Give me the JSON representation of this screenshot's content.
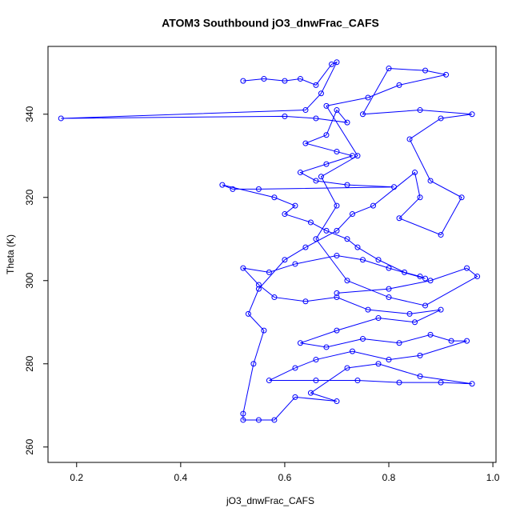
{
  "chart_data": {
    "type": "line",
    "title": "ATOM3 Southbound jO3_dnwFrac_CAFS",
    "x_label": "jO3_dnwFrac_CAFS",
    "y_label": "Theta (K)",
    "color": "#0000ff",
    "markers": true,
    "xlim": [
      0.145,
      1.006
    ],
    "ylim": [
      256.3,
      356.3
    ],
    "xticks": [
      0.2,
      0.4,
      0.6,
      {
        "value": 0.8,
        "label": "0.8"
      },
      {
        "value": 1,
        "label": "1.0"
      }
    ],
    "yticks": [
      260,
      280,
      300,
      320,
      340
    ],
    "x": [
      0.52,
      0.56,
      0.6,
      0.63,
      0.66,
      0.69,
      0.7,
      0.67,
      0.64,
      0.17,
      0.6,
      0.66,
      0.72,
      0.7,
      0.68,
      0.64,
      0.7,
      0.73,
      0.68,
      0.63,
      0.66,
      0.72,
      0.81,
      0.55,
      0.5,
      0.48,
      0.58,
      0.62,
      0.6,
      0.65,
      0.68,
      0.72,
      0.74,
      0.78,
      0.83,
      0.86,
      0.87,
      0.8,
      0.75,
      0.7,
      0.62,
      0.57,
      0.52,
      0.55,
      0.58,
      0.64,
      0.7,
      0.76,
      0.84,
      0.9,
      0.85,
      0.78,
      0.7,
      0.63,
      0.68,
      0.75,
      0.82,
      0.88,
      0.92,
      0.95,
      0.86,
      0.8,
      0.73,
      0.66,
      0.62,
      0.57,
      0.66,
      0.74,
      0.82,
      0.9,
      0.96,
      0.86,
      0.78,
      0.72,
      0.65,
      0.7,
      0.62,
      0.58,
      0.55,
      0.52,
      0.52,
      0.54,
      0.56,
      0.53,
      0.55,
      0.6,
      0.64,
      0.7,
      0.73,
      0.77,
      0.85,
      0.86,
      0.82,
      0.9,
      0.94,
      0.88,
      0.84,
      0.9,
      0.96,
      0.86,
      0.75,
      0.8,
      0.87,
      0.91,
      0.82,
      0.76,
      0.68,
      0.74,
      0.67,
      0.7,
      0.66,
      0.72,
      0.8,
      0.87,
      0.97,
      0.95,
      0.88,
      0.8,
      0.7
    ],
    "values": [
      348,
      348.5,
      348,
      348.5,
      347,
      352,
      352.5,
      345,
      341,
      339,
      339.5,
      339,
      338,
      341,
      335,
      333,
      331,
      330,
      328,
      326,
      324,
      323,
      322.5,
      322,
      322,
      323,
      320,
      318,
      316,
      314,
      312,
      310,
      308,
      305,
      302,
      301,
      300.5,
      303,
      305,
      306,
      304,
      302,
      303,
      299,
      296,
      295,
      296,
      293,
      292,
      293,
      290,
      291,
      288,
      285,
      284,
      286,
      285,
      287,
      285.5,
      285.5,
      282,
      281,
      283,
      281,
      279,
      276,
      276,
      276,
      275.5,
      275.5,
      275.2,
      277,
      280,
      279,
      273,
      271,
      272,
      266.5,
      266.5,
      266.5,
      268,
      280,
      288,
      292,
      298,
      305,
      308,
      312,
      316,
      318,
      326,
      320,
      315,
      311,
      320,
      324,
      334,
      339,
      340,
      341,
      340,
      351,
      350.5,
      349.5,
      347,
      344,
      342,
      330,
      325,
      318,
      310,
      300,
      296,
      294,
      301,
      303,
      300,
      298,
      297
    ]
  }
}
